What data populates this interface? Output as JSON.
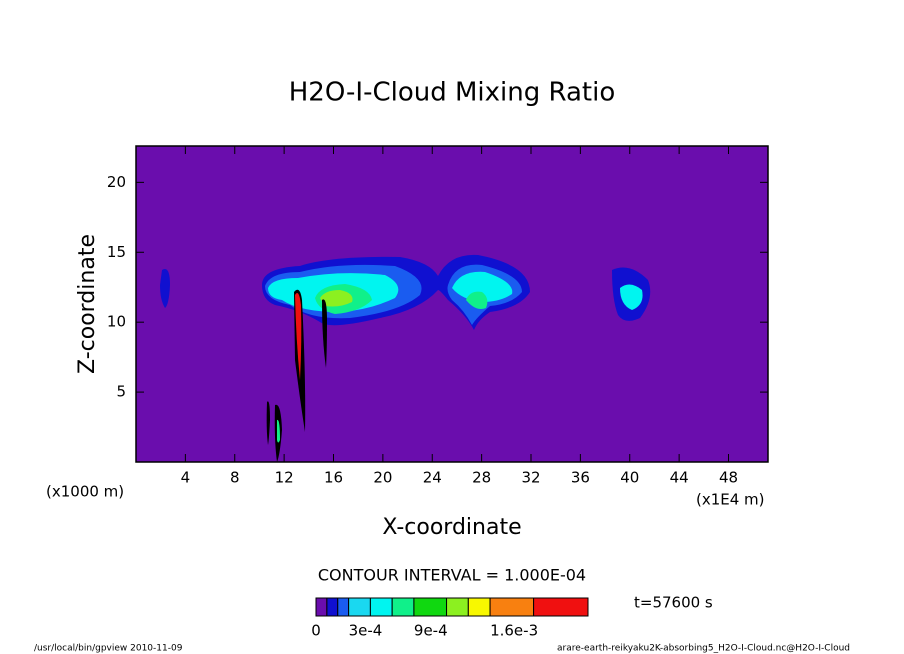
{
  "chart_data": {
    "type": "contour",
    "title": "H2O-I-Cloud Mixing Ratio",
    "x_label": "X-coordinate",
    "y_label": "Z-coordinate",
    "x_unit_left": "(x1000 m)",
    "x_unit_right": "(x1E4 m)",
    "xlim": [
      0,
      51.2
    ],
    "ylim": [
      0,
      22.6
    ],
    "xticks": [
      4,
      8,
      12,
      16,
      20,
      24,
      28,
      32,
      36,
      40,
      44,
      48
    ],
    "yticks": [
      5,
      10,
      15,
      20
    ],
    "contour_interval": "CONTOUR INTERVAL = 1.000E-04",
    "time_label": "t=57600 s",
    "levels": [
      0,
      0.0001,
      0.0002,
      0.0003,
      0.0005,
      0.0007,
      0.0009,
      0.0012,
      0.0014,
      0.0016,
      0.002,
      0.0025
    ],
    "level_colors": [
      "#6a0dad",
      "#1010d0",
      "#1a5cf0",
      "#1ad8f0",
      "#00f5f0",
      "#10f08a",
      "#10d810",
      "#8cf020",
      "#f8f800",
      "#f88010",
      "#f01010",
      "#f8a0a0"
    ],
    "colorbar_ticks": [
      0,
      {
        "value": 0.0003,
        "label": "3e-4"
      },
      {
        "value": 0.0009,
        "label": "9e-4"
      },
      {
        "value": 0.0016,
        "label": "1.6e-3"
      }
    ],
    "footer_left": "/usr/local/bin/gpview  2010-11-09",
    "footer_right": "arare-earth-reikyaku2K-absorbing5_H2O-I-Cloud.nc@H2O-I-Cloud"
  }
}
